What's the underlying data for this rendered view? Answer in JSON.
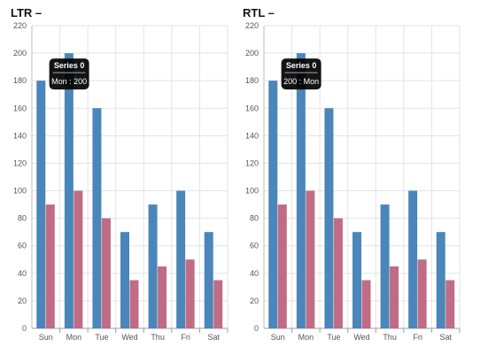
{
  "charts": [
    {
      "title": "LTR –",
      "tooltip": {
        "title": "Series 0",
        "text": "Mon : 200"
      }
    },
    {
      "title": "RTL –",
      "tooltip": {
        "title": "Series 0",
        "text": "200 : Mon"
      }
    }
  ],
  "colors": {
    "series0": "#4a86b9",
    "series1": "#c06c84",
    "grid": "#e3e3e3",
    "tooltip_bg": "#000000"
  },
  "chart_data": [
    {
      "type": "bar",
      "title": "LTR –",
      "categories": [
        "Sun",
        "Mon",
        "Tue",
        "Wed",
        "Thu",
        "Fri",
        "Sat"
      ],
      "series": [
        {
          "values": [
            180,
            200,
            160,
            70,
            90,
            100,
            70
          ]
        },
        {
          "values": [
            90,
            100,
            80,
            35,
            45,
            50,
            35
          ]
        }
      ],
      "ylim": [
        0,
        220
      ],
      "yticks": [
        "0",
        "20",
        "40",
        "60",
        "80",
        "100",
        "120",
        "140",
        "160",
        "180",
        "200",
        "220"
      ],
      "grid": true
    },
    {
      "type": "bar",
      "title": "RTL –",
      "categories": [
        "Sun",
        "Mon",
        "Tue",
        "Wed",
        "Thu",
        "Fri",
        "Sat"
      ],
      "series": [
        {
          "values": [
            180,
            200,
            160,
            70,
            90,
            100,
            70
          ]
        },
        {
          "values": [
            90,
            100,
            80,
            35,
            45,
            50,
            35
          ]
        }
      ],
      "ylim": [
        0,
        220
      ],
      "yticks": [
        "0",
        "20",
        "40",
        "60",
        "80",
        "100",
        "120",
        "140",
        "160",
        "180",
        "200",
        "220"
      ],
      "grid": true
    }
  ]
}
